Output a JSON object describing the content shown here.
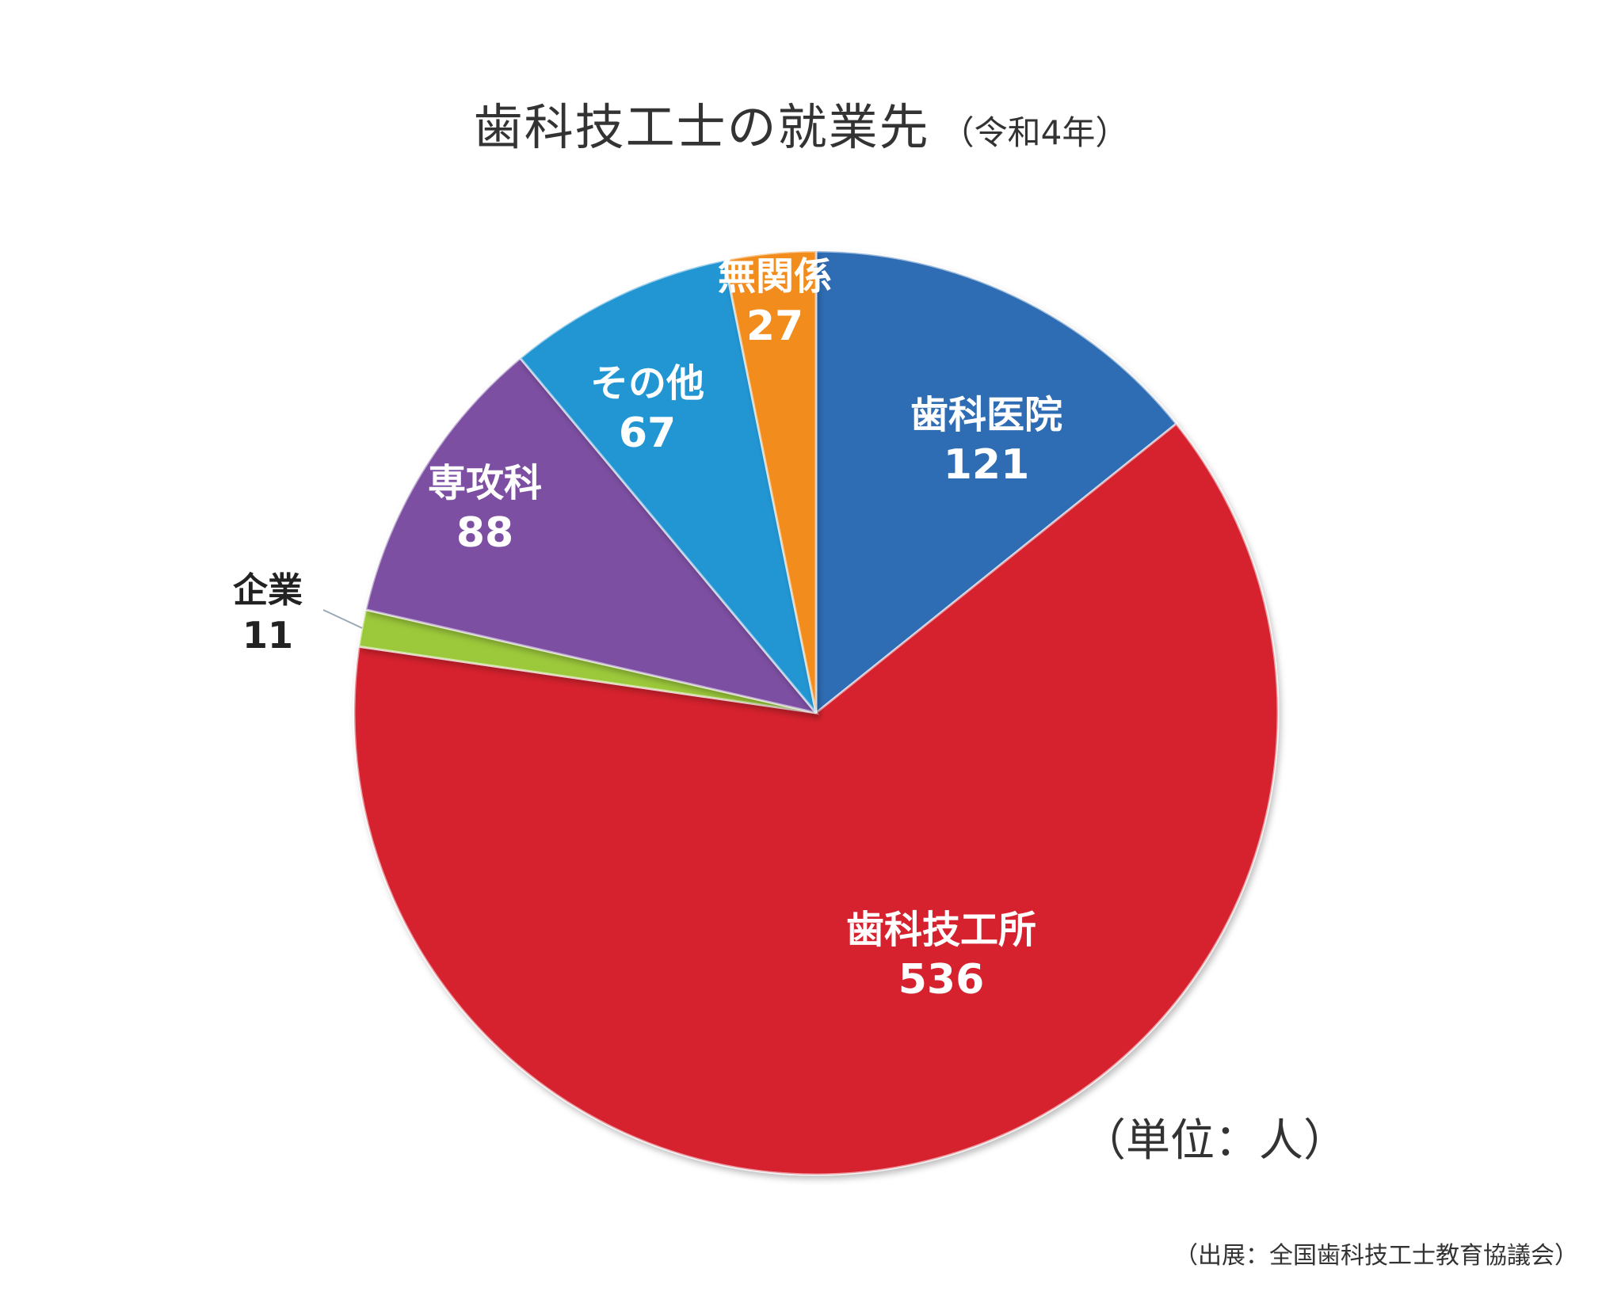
{
  "chart_data": {
    "type": "pie",
    "title": "歯科技工士の就業先",
    "subtitle": "（令和4年）",
    "unit_note": "（単位：人）",
    "source": "（出展：全国歯科技工士教育協議会）",
    "start_angle_deg": 0,
    "direction": "clockwise",
    "slices": [
      {
        "label": "歯科医院",
        "value": 121,
        "color": "#2E6DB4",
        "text_color": "#ffffff"
      },
      {
        "label": "歯科技工所",
        "value": 536,
        "color": "#D6202E",
        "text_color": "#ffffff"
      },
      {
        "label": "企業",
        "value": 11,
        "color": "#9CC93B",
        "text_color": "#222222"
      },
      {
        "label": "専攻科",
        "value": 88,
        "color": "#7B4FA2",
        "text_color": "#ffffff"
      },
      {
        "label": "その他",
        "value": 67,
        "color": "#2396D3",
        "text_color": "#ffffff"
      },
      {
        "label": "無関係",
        "value": 27,
        "color": "#F28C1E",
        "text_color": "#ffffff"
      }
    ]
  }
}
